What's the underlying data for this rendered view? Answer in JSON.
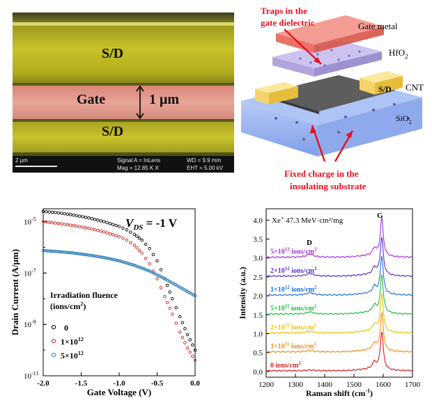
{
  "sem": {
    "labels": {
      "sd_top": "S/D",
      "gate": "Gate",
      "width": "1 μm",
      "sd_bottom": "S/D"
    },
    "info": {
      "scale": "2 μm",
      "signal": "Signal A = InLens",
      "mag": "Mag = 12.85 K X",
      "wd": "WD = 9.9 mm",
      "eht": "EHT = 5.00 kV"
    },
    "colors": {
      "sd": "#c7c227",
      "gate": "#e49b8c"
    }
  },
  "schematic": {
    "labels": {
      "traps_line1": "Traps in the",
      "traps_line2": "gate dielectric",
      "gate_metal": "Gate metal",
      "hfo2": "HfO",
      "hfo2_sub": "2",
      "sd": "S/D",
      "cnt": "CNT",
      "sio2": "SiO",
      "sio2_sub": "2",
      "fixed_line1": "Fixed charge in the",
      "fixed_line2": "insulating substrate"
    },
    "colors": {
      "annotation": "#e8101e",
      "gate_metal": "#ee7a6f",
      "hfo2": "#a99bd8",
      "sio2": "#93b4f0",
      "sd": "#f3d36a"
    }
  },
  "chart_data": [
    {
      "type": "scatter",
      "title": "",
      "annotation": {
        "prefix": "V",
        "sub": "DS",
        "value": " = -1 V"
      },
      "xlabel": "Gate Voltage (V)",
      "ylabel": "Drain Current (A/μm)",
      "xlim": [
        -2.0,
        0.0
      ],
      "ylim_log10": [
        -11,
        -4.5
      ],
      "yscale": "log",
      "x_ticks": [
        "-2.0",
        "-1.5",
        "-1.0",
        "-0.5",
        "0.0"
      ],
      "y_ticks": [
        {
          "base": "10",
          "exp": "-5"
        },
        {
          "base": "10",
          "exp": "-7"
        },
        {
          "base": "10",
          "exp": "-9"
        },
        {
          "base": "10",
          "exp": "-11"
        }
      ],
      "legend": {
        "title_line1": "Irradiation fluence",
        "title_line2": "(ions/cm",
        "title_sup": "2",
        "title_end": ")",
        "placement": "bottom-left",
        "entries": [
          {
            "label": "0",
            "base": "",
            "exp": ""
          },
          {
            "label": "1×10",
            "base": "1×10",
            "exp": "12"
          },
          {
            "label": "5×10",
            "base": "5×10",
            "exp": "12"
          }
        ]
      },
      "series": [
        {
          "color": "#000000",
          "marker": "circle",
          "points": [
            [
              -2.0,
              2.5e-05
            ],
            [
              -1.8,
              2.2e-05
            ],
            [
              -1.6,
              1.8e-05
            ],
            [
              -1.4,
              1.4e-05
            ],
            [
              -1.2,
              1e-05
            ],
            [
              -1.0,
              6.5e-06
            ],
            [
              -0.9,
              4.8e-06
            ],
            [
              -0.8,
              3.2e-06
            ],
            [
              -0.7,
              1.9e-06
            ],
            [
              -0.6,
              9e-07
            ],
            [
              -0.5,
              3e-07
            ],
            [
              -0.4,
              6e-08
            ],
            [
              -0.3,
              1e-08
            ],
            [
              -0.2,
              2e-09
            ],
            [
              -0.1,
              4e-10
            ],
            [
              0.0,
              1e-10
            ]
          ]
        },
        {
          "color": "#cc2222",
          "marker": "circle",
          "points": [
            [
              -2.0,
              1e-05
            ],
            [
              -1.8,
              8.5e-06
            ],
            [
              -1.6,
              7e-06
            ],
            [
              -1.4,
              5.5e-06
            ],
            [
              -1.2,
              4e-06
            ],
            [
              -1.0,
              2.6e-06
            ],
            [
              -0.9,
              1.9e-06
            ],
            [
              -0.8,
              1.2e-06
            ],
            [
              -0.7,
              6e-07
            ],
            [
              -0.6,
              2.3e-07
            ],
            [
              -0.5,
              6e-08
            ],
            [
              -0.4,
              1.2e-08
            ],
            [
              -0.3,
              2.5e-09
            ],
            [
              -0.2,
              5e-10
            ],
            [
              -0.1,
              1.2e-10
            ],
            [
              0.0,
              4e-11
            ]
          ]
        },
        {
          "color": "#2c7fb8",
          "marker": "circle",
          "points": [
            [
              -2.0,
              7.5e-07
            ],
            [
              -1.8,
              6.8e-07
            ],
            [
              -1.6,
              6e-07
            ],
            [
              -1.4,
              5e-07
            ],
            [
              -1.2,
              4e-07
            ],
            [
              -1.0,
              3e-07
            ],
            [
              -0.8,
              2e-07
            ],
            [
              -0.6,
              1.2e-07
            ],
            [
              -0.4,
              6e-08
            ],
            [
              -0.2,
              2.8e-08
            ],
            [
              0.0,
              1.3e-08
            ]
          ]
        }
      ]
    },
    {
      "type": "line",
      "title": "",
      "annotation": {
        "ion": "Xe",
        "sup": "+",
        "rest": " 47.3 MeV·cm²/mg"
      },
      "xlabel": "Raman shift (cm",
      "xlabel_sup": "-1",
      "xlabel_end": ")",
      "ylabel": "Intensity (a.u.)",
      "xlim": [
        1200,
        1700
      ],
      "ylim": [
        -0.15,
        4.3
      ],
      "x_ticks": [
        "1200",
        "1300",
        "1400",
        "1500",
        "1600",
        "1700"
      ],
      "y_ticks": [
        "0.0",
        "0.5",
        "1.0",
        "1.5",
        "2.0",
        "2.5",
        "3.0",
        "3.5",
        "4.0"
      ],
      "peak_labels": {
        "G": "G",
        "D": "D"
      },
      "series": [
        {
          "base": "0 ions/cm",
          "exp": "",
          "sup": "2",
          "offset": 0.0,
          "color": "#d62020"
        },
        {
          "base": "1×10",
          "exp": "11",
          "sup": "2",
          "offset": 0.5,
          "color": "#f08a1a"
        },
        {
          "base": "2×10",
          "exp": "11",
          "sup": "2",
          "offset": 1.0,
          "color": "#e8c300"
        },
        {
          "base": "5×10",
          "exp": "11",
          "sup": "2",
          "offset": 1.5,
          "color": "#1fbf3a"
        },
        {
          "base": "1×10",
          "exp": "12",
          "sup": "2",
          "offset": 2.0,
          "color": "#1a6fe0"
        },
        {
          "base": "2×10",
          "exp": "12",
          "sup": "2",
          "offset": 2.5,
          "color": "#5a2fc8"
        },
        {
          "base": "5×10",
          "exp": "12",
          "sup": "2",
          "offset": 3.0,
          "color": "#a32fd6"
        }
      ],
      "series_label_unit": " ions/cm",
      "peaks": {
        "g_center": 1595,
        "g_height": 1.0,
        "d_center": 1350
      }
    }
  ]
}
